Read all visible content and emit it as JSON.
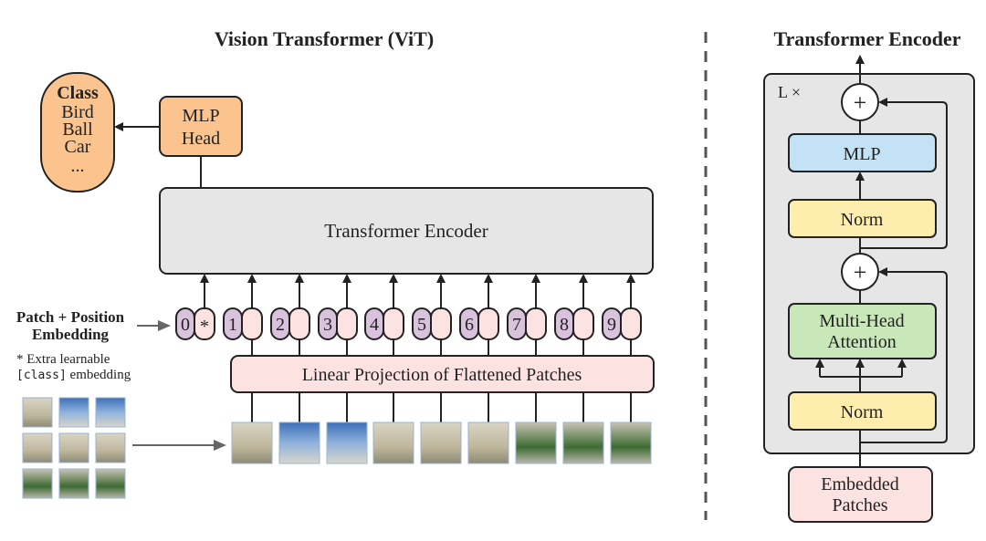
{
  "vit": {
    "title": "Vision Transformer (ViT)",
    "class_box": {
      "title": "Class",
      "items": [
        "Bird",
        "Ball",
        "Car",
        "..."
      ]
    },
    "mlp_head": [
      "MLP",
      "Head"
    ],
    "encoder_label": "Transformer Encoder",
    "embedding_label": [
      "Patch + Position",
      "Embedding"
    ],
    "extra_note": {
      "line1": "* Extra learnable",
      "code": "[class]",
      "line2": " embedding"
    },
    "tokens": [
      "0",
      "1",
      "2",
      "3",
      "4",
      "5",
      "6",
      "7",
      "8",
      "9"
    ],
    "class_token_mark": "*",
    "projection_label": "Linear Projection of Flattened Patches"
  },
  "encoder": {
    "title": "Transformer Encoder",
    "repeat_label": "L ×",
    "plus": "+",
    "mlp": "MLP",
    "norm": "Norm",
    "attention": [
      "Multi-Head",
      "Attention"
    ],
    "input": [
      "Embedded",
      "Patches"
    ]
  },
  "colors": {
    "class": "#fbc48e",
    "encoder_bg": "#e6e6e6",
    "token_pos": "#d8c2dc",
    "token_patch": "#fde2e2",
    "projection": "#fde2e2",
    "mlp": "#c3e2f5",
    "norm": "#fdeeae",
    "attention": "#c9e8b9"
  }
}
